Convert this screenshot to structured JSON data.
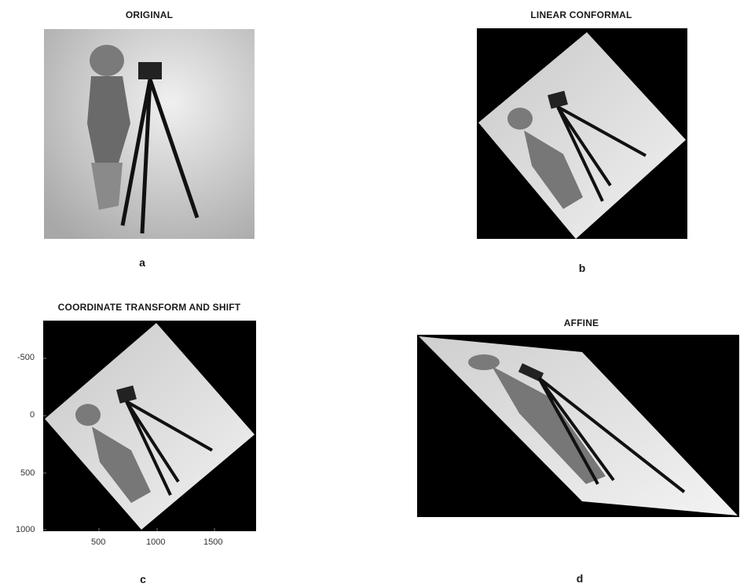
{
  "figure": {
    "panels": [
      {
        "id": "a",
        "title": "ORIGINAL",
        "caption": "a"
      },
      {
        "id": "b",
        "title": "LINEAR CONFORMAL",
        "caption": "b"
      },
      {
        "id": "c",
        "title": "COORDINATE TRANSFORM AND SHIFT",
        "caption": "c",
        "axes": {
          "yticks": [
            "-500",
            "0",
            "500",
            "1000"
          ],
          "xticks": [
            "500",
            "1000",
            "1500"
          ]
        }
      },
      {
        "id": "d",
        "title": "AFFINE",
        "caption": "d"
      }
    ],
    "colors": {
      "background": "#000000",
      "photo_light": "#e6e6e6",
      "photo_dark": "#9a9a9a",
      "subject": "#2a2a2a"
    }
  }
}
